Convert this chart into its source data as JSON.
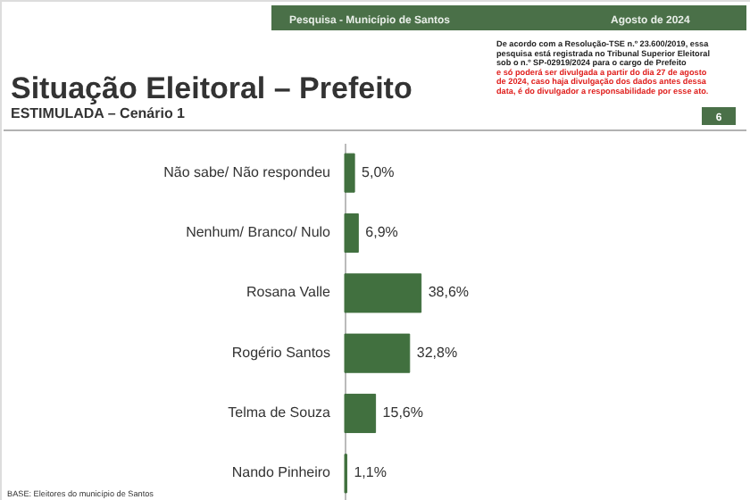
{
  "chart_data": {
    "type": "bar",
    "orientation": "horizontal",
    "title": "Situação Eleitoral – Prefeito",
    "subtitle": "ESTIMULADA – Cenário 1",
    "categories": [
      "Não sabe/ Não respondeu",
      "Nenhum/ Branco/ Nulo",
      "Rosana Valle",
      "Rogério Santos",
      "Telma de Souza",
      "Nando Pinheiro"
    ],
    "values": [
      5.0,
      6.9,
      38.6,
      32.8,
      15.6,
      1.1
    ],
    "value_labels": [
      "5,0%",
      "6,9%",
      "38,6%",
      "32,8%",
      "15,6%",
      "1,1%"
    ],
    "color": "#41703f",
    "annotations": [
      "Pesquisa - Município de Santos",
      "Agosto de 2024",
      "De acordo com a Resolução-TSE n.º 23.600/2019, essa pesquisa está registrada no Tribunal Superior Eleitoral sob o n.º SP-02919/2024 para o cargo de Prefeito",
      "e só poderá ser divulgada a partir do dia 27 de agosto de 2024, caso haja divulgação dos dados antes dessa data, é do divulgador a responsabilidade por esse ato.",
      "6",
      "BASE: Eleitores do município de Santos"
    ]
  }
}
